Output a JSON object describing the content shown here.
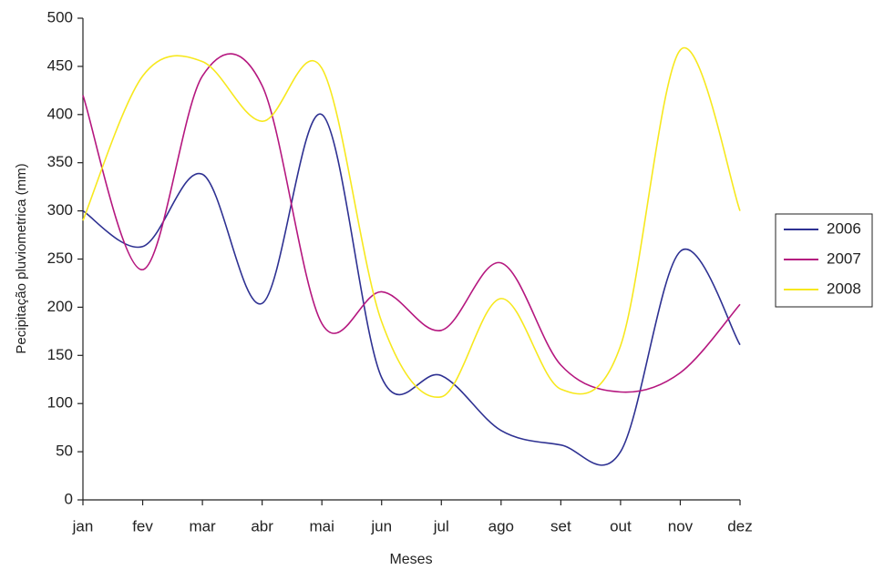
{
  "chart_data": {
    "type": "line",
    "x_label": "Meses",
    "y_label": "Pecipitação pluviometrica (mm)",
    "categories": [
      "jan",
      "fev",
      "mar",
      "abr",
      "mai",
      "jun",
      "jul",
      "ago",
      "set",
      "out",
      "nov",
      "dez"
    ],
    "series": [
      {
        "name": "2006",
        "color": "#2e3192",
        "values": [
          300,
          263,
          338,
          204,
          400,
          127,
          129,
          72,
          57,
          50,
          258,
          161
        ]
      },
      {
        "name": "2007",
        "color": "#b5177f",
        "values": [
          420,
          239,
          440,
          430,
          183,
          216,
          176,
          246,
          140,
          112,
          132,
          203
        ]
      },
      {
        "name": "2008",
        "color": "#f7e81e",
        "values": [
          290,
          440,
          455,
          393,
          448,
          185,
          107,
          209,
          115,
          160,
          467,
          300
        ]
      }
    ],
    "ylim": [
      0,
      500
    ],
    "yticks": [
      0,
      50,
      100,
      150,
      200,
      250,
      300,
      350,
      400,
      450,
      500
    ],
    "legend": "right",
    "grid": false
  }
}
